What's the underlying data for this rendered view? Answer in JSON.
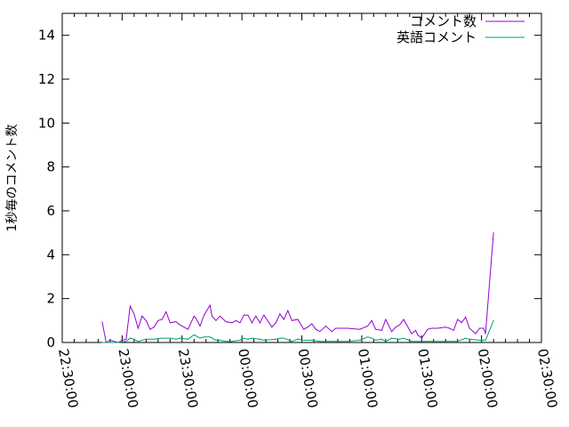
{
  "chart_data": {
    "type": "line",
    "title": "",
    "xlabel": "",
    "ylabel": "1秒毎のコメント数",
    "ylim": [
      0,
      15
    ],
    "yticks": [
      "0",
      "2",
      "4",
      "6",
      "8",
      "10",
      "12",
      "14"
    ],
    "xlim": [
      "22:30:00",
      "02:30:00"
    ],
    "xticks": [
      "22:30:00",
      "23:00:00",
      "23:30:00",
      "00:00:00",
      "00:30:00",
      "01:00:00",
      "01:30:00",
      "02:00:00",
      "02:30:00"
    ],
    "grid": false,
    "legend_position": "top-right",
    "series": [
      {
        "name": "コメント数",
        "color": "#9400d3",
        "points": [
          [
            "22:50",
            0.94
          ],
          [
            "22:52",
            0
          ],
          [
            "22:54",
            0.1
          ],
          [
            "22:58",
            0
          ],
          [
            "23:00",
            0.1
          ],
          [
            "23:02",
            0.15
          ],
          [
            "23:04",
            1.66
          ],
          [
            "23:06",
            1.3
          ],
          [
            "23:08",
            0.65
          ],
          [
            "23:10",
            1.2
          ],
          [
            "23:12",
            1.0
          ],
          [
            "23:14",
            0.6
          ],
          [
            "23:16",
            0.7
          ],
          [
            "23:18",
            1.0
          ],
          [
            "23:20",
            1.05
          ],
          [
            "23:22",
            1.4
          ],
          [
            "23:24",
            0.9
          ],
          [
            "23:27",
            0.95
          ],
          [
            "23:29",
            0.8
          ],
          [
            "23:33",
            0.6
          ],
          [
            "23:36",
            1.2
          ],
          [
            "23:37",
            1.1
          ],
          [
            "23:39",
            0.75
          ],
          [
            "23:41",
            1.25
          ],
          [
            "23:44",
            1.7
          ],
          [
            "23:45",
            1.2
          ],
          [
            "23:47",
            1.0
          ],
          [
            "23:49",
            1.2
          ],
          [
            "23:52",
            0.95
          ],
          [
            "23:55",
            0.9
          ],
          [
            "23:57",
            1.0
          ],
          [
            "23:59",
            0.9
          ],
          [
            "00:01",
            1.25
          ],
          [
            "00:03",
            1.25
          ],
          [
            "00:05",
            0.9
          ],
          [
            "00:07",
            1.2
          ],
          [
            "00:09",
            0.9
          ],
          [
            "00:11",
            1.25
          ],
          [
            "00:15",
            0.7
          ],
          [
            "00:17",
            0.9
          ],
          [
            "00:19",
            1.3
          ],
          [
            "00:21",
            1.05
          ],
          [
            "00:23",
            1.45
          ],
          [
            "00:25",
            1.0
          ],
          [
            "00:28",
            1.05
          ],
          [
            "00:31",
            0.6
          ],
          [
            "00:33",
            0.7
          ],
          [
            "00:35",
            0.85
          ],
          [
            "00:37",
            0.6
          ],
          [
            "00:39",
            0.5
          ],
          [
            "00:42",
            0.75
          ],
          [
            "00:45",
            0.5
          ],
          [
            "00:47",
            0.65
          ],
          [
            "00:53",
            0.65
          ],
          [
            "00:59",
            0.6
          ],
          [
            "01:03",
            0.75
          ],
          [
            "01:05",
            1.0
          ],
          [
            "01:07",
            0.6
          ],
          [
            "01:10",
            0.55
          ],
          [
            "01:12",
            1.05
          ],
          [
            "01:15",
            0.5
          ],
          [
            "01:17",
            0.7
          ],
          [
            "01:19",
            0.8
          ],
          [
            "01:21",
            1.05
          ],
          [
            "01:25",
            0.4
          ],
          [
            "01:27",
            0.55
          ],
          [
            "01:28",
            0.35
          ],
          [
            "01:30",
            0.2
          ],
          [
            "01:33",
            0.6
          ],
          [
            "01:35",
            0.65
          ],
          [
            "01:38",
            0.65
          ],
          [
            "01:42",
            0.7
          ],
          [
            "01:44",
            0.65
          ],
          [
            "01:46",
            0.55
          ],
          [
            "01:48",
            1.05
          ],
          [
            "01:50",
            0.9
          ],
          [
            "01:52",
            1.15
          ],
          [
            "01:54",
            0.65
          ],
          [
            "01:57",
            0.4
          ],
          [
            "01:59",
            0.65
          ],
          [
            "02:01",
            0.65
          ],
          [
            "02:02",
            0.4
          ],
          [
            "02:06",
            5.0
          ]
        ]
      },
      {
        "name": "英語コメント",
        "color": "#009e73",
        "points": [
          [
            "22:50",
            0
          ],
          [
            "22:54",
            0
          ],
          [
            "22:58",
            0
          ],
          [
            "23:02",
            0.05
          ],
          [
            "23:04",
            0.2
          ],
          [
            "23:06",
            0.15
          ],
          [
            "23:08",
            0.05
          ],
          [
            "23:12",
            0.15
          ],
          [
            "23:16",
            0.15
          ],
          [
            "23:20",
            0.2
          ],
          [
            "23:24",
            0.2
          ],
          [
            "23:27",
            0.15
          ],
          [
            "23:29",
            0.2
          ],
          [
            "23:33",
            0.15
          ],
          [
            "23:36",
            0.35
          ],
          [
            "23:39",
            0.2
          ],
          [
            "23:41",
            0.25
          ],
          [
            "23:44",
            0.25
          ],
          [
            "23:47",
            0.1
          ],
          [
            "23:49",
            0.1
          ],
          [
            "23:52",
            0.05
          ],
          [
            "23:55",
            0.05
          ],
          [
            "23:59",
            0.1
          ],
          [
            "00:01",
            0.2
          ],
          [
            "00:03",
            0.15
          ],
          [
            "00:05",
            0.2
          ],
          [
            "00:09",
            0.15
          ],
          [
            "00:11",
            0.1
          ],
          [
            "00:17",
            0.15
          ],
          [
            "00:19",
            0.2
          ],
          [
            "00:21",
            0.2
          ],
          [
            "00:25",
            0.05
          ],
          [
            "00:28",
            0.15
          ],
          [
            "00:31",
            0.1
          ],
          [
            "00:35",
            0.1
          ],
          [
            "00:39",
            0.05
          ],
          [
            "00:42",
            0.05
          ],
          [
            "00:47",
            0.05
          ],
          [
            "00:53",
            0.05
          ],
          [
            "00:59",
            0.1
          ],
          [
            "01:03",
            0.25
          ],
          [
            "01:05",
            0.2
          ],
          [
            "01:07",
            0.1
          ],
          [
            "01:10",
            0.15
          ],
          [
            "01:12",
            0.05
          ],
          [
            "01:15",
            0.2
          ],
          [
            "01:19",
            0.15
          ],
          [
            "01:21",
            0.2
          ],
          [
            "01:25",
            0.05
          ],
          [
            "01:30",
            0.05
          ],
          [
            "01:35",
            0.05
          ],
          [
            "01:42",
            0.05
          ],
          [
            "01:48",
            0.05
          ],
          [
            "01:52",
            0.2
          ],
          [
            "01:54",
            0.15
          ],
          [
            "01:59",
            0.1
          ],
          [
            "02:02",
            0.1
          ],
          [
            "02:06",
            1.0
          ]
        ]
      }
    ]
  }
}
